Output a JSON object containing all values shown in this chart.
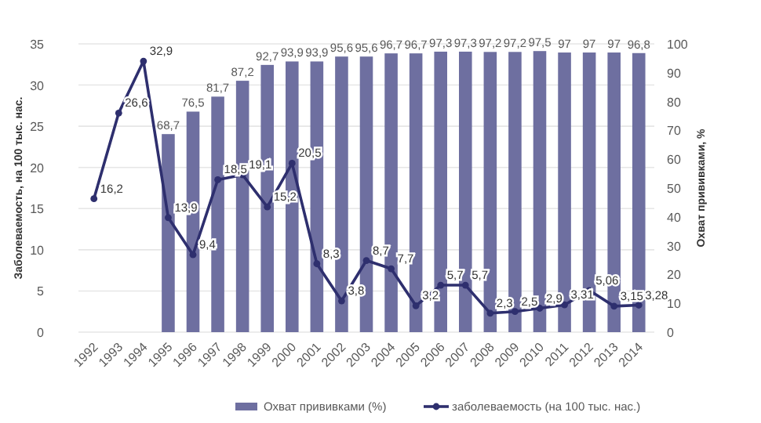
{
  "chart_data": {
    "type": "bar",
    "categories": [
      "1992",
      "1993",
      "1994",
      "1995",
      "1996",
      "1997",
      "1998",
      "1999",
      "2000",
      "2001",
      "2002",
      "2003",
      "2004",
      "2005",
      "2006",
      "2007",
      "2008",
      "2009",
      "2010",
      "2011",
      "2012",
      "2013",
      "2014"
    ],
    "ylabel": "Заболеваемость, на 100 тыс. нас.",
    "y2label": "Охват прививками, %",
    "ylim": [
      0,
      35
    ],
    "yticks": [
      0,
      5,
      10,
      15,
      20,
      25,
      30,
      35
    ],
    "y2lim": [
      0,
      100
    ],
    "y2ticks": [
      0,
      10,
      20,
      30,
      40,
      50,
      60,
      70,
      80,
      90,
      100
    ],
    "grid": "y",
    "legend": "bottom",
    "marker": "circle",
    "line_style": "solid",
    "series": [
      {
        "name": "Охват прививками (%)",
        "axis": "y2",
        "color": "#6e6fa0",
        "values": [
          null,
          null,
          null,
          68.7,
          76.5,
          81.7,
          87.2,
          92.7,
          93.9,
          93.9,
          95.6,
          95.6,
          96.7,
          96.7,
          97.3,
          97.3,
          97.2,
          97.2,
          97.5,
          97,
          97,
          97,
          96.8
        ],
        "value_labels": [
          null,
          null,
          null,
          "68,7",
          "76,5",
          "81,7",
          "87,2",
          "92,7",
          "93,9",
          "93,9",
          "95,6",
          "95,6",
          "96,7",
          "96,7",
          "97,3",
          "97,3",
          "97,2",
          "97,2",
          "97,5",
          "97",
          "97",
          "97",
          "96,8"
        ]
      },
      {
        "name": "заболеваемость (на 100 тыс. нас.)",
        "type": "line",
        "axis": "y",
        "color": "#2e2f6e",
        "values": [
          16.2,
          26.6,
          32.9,
          13.9,
          9.4,
          18.5,
          19.1,
          15.2,
          20.5,
          8.3,
          3.8,
          8.7,
          7.7,
          3.2,
          5.7,
          5.7,
          2.3,
          2.5,
          2.9,
          3.31,
          5.06,
          3.15,
          3.28
        ],
        "value_labels": [
          "16,2",
          "26,6",
          "32,9",
          "13,9",
          "9,4",
          "18,5",
          "19,1",
          "15,2",
          "20,5",
          "8,3",
          "3,8",
          "8,7",
          "7,7",
          "3,2",
          "5,7",
          "5,7",
          "2,3",
          "2,5",
          "2,9",
          "3,31",
          "5,06",
          "3,15",
          "3,28"
        ]
      }
    ]
  }
}
